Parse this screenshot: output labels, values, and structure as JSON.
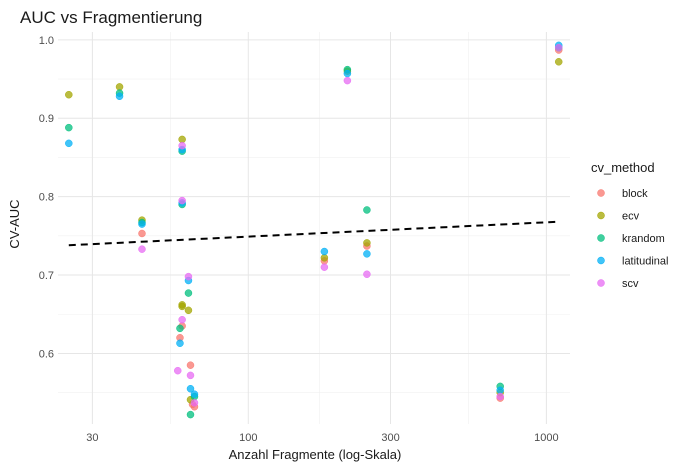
{
  "chart_data": {
    "type": "scatter",
    "title": "AUC vs Fragmentierung",
    "xlabel": "Anzahl Fragmente (log-Skala)",
    "ylabel": "CV-AUC",
    "x_scale": "log10",
    "xlim": [
      23,
      1200
    ],
    "ylim": [
      0.51,
      1.01
    ],
    "x_ticks": [
      30,
      100,
      300,
      1000
    ],
    "x_tick_labels": [
      "30",
      "100",
      "300",
      "1000"
    ],
    "y_ticks": [
      0.6,
      0.7,
      0.8,
      0.9,
      1.0
    ],
    "y_tick_labels": [
      "0.6",
      "0.7",
      "0.8",
      "0.9",
      "1.0"
    ],
    "grid": true,
    "legend": {
      "title": "cv_method",
      "position": "right"
    },
    "series": [
      {
        "name": "block",
        "color": "#F8766D",
        "points": [
          [
            44,
            0.753
          ],
          [
            59,
            0.62
          ],
          [
            60,
            0.635
          ],
          [
            64,
            0.585
          ],
          [
            65,
            0.535
          ],
          [
            66,
            0.532
          ],
          [
            180,
            0.718
          ],
          [
            250,
            0.737
          ],
          [
            700,
            0.543
          ],
          [
            1100,
            0.987
          ]
        ]
      },
      {
        "name": "ecv",
        "color": "#A3A500",
        "points": [
          [
            25,
            0.93
          ],
          [
            37,
            0.94
          ],
          [
            44,
            0.77
          ],
          [
            60,
            0.873
          ],
          [
            60,
            0.66
          ],
          [
            60,
            0.662
          ],
          [
            63,
            0.655
          ],
          [
            64,
            0.541
          ],
          [
            180,
            0.722
          ],
          [
            215,
            0.96
          ],
          [
            250,
            0.741
          ],
          [
            700,
            0.55
          ],
          [
            1100,
            0.972
          ]
        ]
      },
      {
        "name": "krandom",
        "color": "#00BF7D",
        "points": [
          [
            25,
            0.888
          ],
          [
            37,
            0.932
          ],
          [
            44,
            0.767
          ],
          [
            59,
            0.632
          ],
          [
            60,
            0.858
          ],
          [
            60,
            0.79
          ],
          [
            63,
            0.677
          ],
          [
            64,
            0.522
          ],
          [
            66,
            0.545
          ],
          [
            215,
            0.962
          ],
          [
            250,
            0.783
          ],
          [
            700,
            0.558
          ],
          [
            1100,
            0.99
          ]
        ]
      },
      {
        "name": "latitudinal",
        "color": "#00B0F6",
        "points": [
          [
            25,
            0.868
          ],
          [
            37,
            0.928
          ],
          [
            44,
            0.765
          ],
          [
            59,
            0.613
          ],
          [
            60,
            0.86
          ],
          [
            60,
            0.792
          ],
          [
            63,
            0.693
          ],
          [
            64,
            0.555
          ],
          [
            66,
            0.548
          ],
          [
            180,
            0.73
          ],
          [
            215,
            0.957
          ],
          [
            250,
            0.727
          ],
          [
            700,
            0.553
          ],
          [
            1100,
            0.993
          ]
        ]
      },
      {
        "name": "scv",
        "color": "#E76BF3",
        "points": [
          [
            44,
            0.733
          ],
          [
            58,
            0.578
          ],
          [
            60,
            0.643
          ],
          [
            60,
            0.795
          ],
          [
            60,
            0.865
          ],
          [
            63,
            0.698
          ],
          [
            64,
            0.572
          ],
          [
            66,
            0.537
          ],
          [
            180,
            0.71
          ],
          [
            215,
            0.948
          ],
          [
            250,
            0.701
          ],
          [
            700,
            0.545
          ],
          [
            1100,
            0.99
          ]
        ]
      }
    ],
    "trend_line": {
      "style": "dashed",
      "color": "#000000",
      "points": [
        [
          25,
          0.738
        ],
        [
          1100,
          0.768
        ]
      ]
    }
  }
}
